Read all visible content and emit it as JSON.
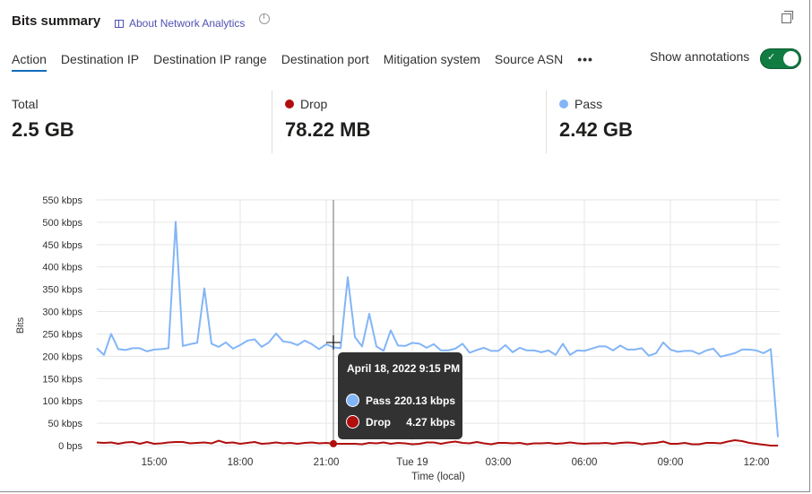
{
  "header": {
    "title": "Bits summary",
    "about_link": "About Network Analytics"
  },
  "tabs": [
    {
      "label": "Action",
      "active": true
    },
    {
      "label": "Destination IP"
    },
    {
      "label": "Destination IP range"
    },
    {
      "label": "Destination port"
    },
    {
      "label": "Mitigation system"
    },
    {
      "label": "Source ASN"
    }
  ],
  "more_label": "•••",
  "annotations": {
    "label": "Show annotations",
    "on": true
  },
  "stats": [
    {
      "label": "Total",
      "value": "2.5 GB"
    },
    {
      "label": "Drop",
      "value": "78.22 MB",
      "color": "#b10e0e"
    },
    {
      "label": "Pass",
      "value": "2.42 GB",
      "color": "#83b5f7"
    }
  ],
  "tooltip": {
    "date": "April 18, 2022 9:15 PM",
    "rows": [
      {
        "name": "Pass",
        "value": "220.13 kbps",
        "color": "#83b5f7"
      },
      {
        "name": "Drop",
        "value": "4.27 kbps",
        "color": "#b10e0e"
      }
    ]
  },
  "chart_data": {
    "type": "line",
    "xlabel": "Time (local)",
    "ylabel": "Bits",
    "ylim": [
      0,
      550
    ],
    "y_ticks": [
      "0 bps",
      "50 kbps",
      "100 kbps",
      "150 kbps",
      "200 kbps",
      "250 kbps",
      "300 kbps",
      "350 kbps",
      "400 kbps",
      "450 kbps",
      "500 kbps",
      "550 kbps"
    ],
    "x_ticks": [
      "15:00",
      "18:00",
      "21:00",
      "Tue 19",
      "03:00",
      "06:00",
      "09:00",
      "12:00"
    ],
    "x_start": "2022-04-18 13:00",
    "x_step_minutes": 15,
    "grid": true,
    "hover_index": 33,
    "series": [
      {
        "name": "Pass",
        "color": "#83b5f7",
        "values": [
          218,
          203,
          250,
          216,
          214,
          218,
          218,
          211,
          215,
          216,
          218,
          501,
          223,
          227,
          230,
          352,
          228,
          221,
          231,
          217,
          225,
          235,
          238,
          221,
          231,
          251,
          233,
          231,
          225,
          235,
          227,
          216,
          227,
          220.13,
          218,
          377,
          243,
          222,
          295,
          222,
          212,
          258,
          224,
          223,
          230,
          228,
          219,
          227,
          213,
          213,
          217,
          228,
          208,
          214,
          219,
          212,
          212,
          225,
          209,
          219,
          213,
          213,
          209,
          213,
          203,
          228,
          203,
          213,
          212,
          217,
          222,
          222,
          213,
          224,
          215,
          215,
          218,
          201,
          207,
          231,
          215,
          210,
          212,
          212,
          205,
          213,
          217,
          199,
          203,
          207,
          215,
          215,
          213,
          207,
          216,
          19
        ]
      },
      {
        "name": "Drop",
        "color": "#b10e0e",
        "values": [
          7,
          6,
          7,
          4,
          7,
          8,
          4,
          8,
          4,
          5,
          7,
          8,
          8,
          5,
          6,
          7,
          5,
          11,
          6,
          7,
          4,
          6,
          8,
          4,
          5,
          7,
          5,
          6,
          4,
          6,
          7,
          5,
          6,
          4.27,
          4,
          4,
          4,
          3,
          6,
          5,
          7,
          4,
          6,
          5,
          3,
          4,
          7,
          7,
          4,
          7,
          9,
          6,
          5,
          8,
          5,
          3,
          6,
          6,
          5,
          6,
          3,
          5,
          5,
          6,
          4,
          5,
          7,
          5,
          4,
          5,
          5,
          6,
          4,
          6,
          7,
          6,
          3,
          5,
          6,
          9,
          4,
          4,
          6,
          3,
          3,
          6,
          6,
          5,
          9,
          12,
          10,
          6,
          4,
          2,
          0,
          0
        ]
      }
    ]
  }
}
